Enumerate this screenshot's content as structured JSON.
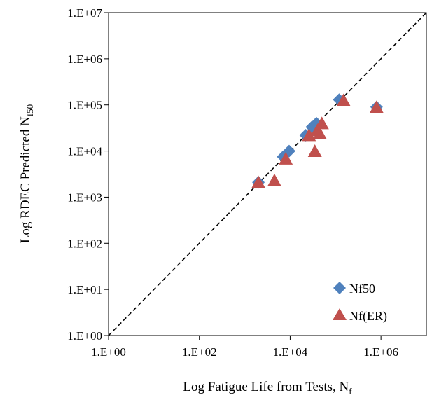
{
  "chart_data": {
    "type": "scatter",
    "xlabel": "Log Fatigue Life from Tests, N",
    "xlabel_sub": "f",
    "ylabel": "Log RDEC Predicted N",
    "ylabel_sub": "f50",
    "x_scale": "log",
    "y_scale": "log",
    "xlim": [
      1,
      10000000
    ],
    "ylim": [
      1,
      10000000
    ],
    "x_ticks": [
      1,
      100,
      10000,
      1000000
    ],
    "x_tick_labels": [
      "1.E+00",
      "1.E+02",
      "1.E+04",
      "1.E+06"
    ],
    "y_ticks": [
      1,
      10,
      100,
      1000,
      10000,
      100000,
      1000000,
      10000000
    ],
    "y_tick_labels": [
      "1.E+00",
      "1.E+01",
      "1.E+02",
      "1.E+03",
      "1.E+04",
      "1.E+05",
      "1.E+06",
      "1.E+07"
    ],
    "grid": false,
    "legend_position": "bottom-right",
    "reference_line": {
      "style": "dashed",
      "color": "#000000",
      "from": [
        1,
        1
      ],
      "to": [
        10000000,
        10000000
      ]
    },
    "series": [
      {
        "name": "Nf50",
        "marker": "diamond",
        "color": "#4F81BD",
        "points": [
          [
            2000,
            2100
          ],
          [
            7000,
            7500
          ],
          [
            9500,
            10000
          ],
          [
            22000,
            22000
          ],
          [
            30000,
            33000
          ],
          [
            38000,
            40000
          ],
          [
            120000,
            130000
          ],
          [
            800000,
            90000
          ]
        ]
      },
      {
        "name": "Nf(ER)",
        "marker": "triangle",
        "color": "#C0504D",
        "points": [
          [
            2000,
            2000
          ],
          [
            4500,
            2200
          ],
          [
            8000,
            6500
          ],
          [
            26000,
            21000
          ],
          [
            35000,
            9500
          ],
          [
            40000,
            27000
          ],
          [
            45000,
            23000
          ],
          [
            50000,
            38000
          ],
          [
            150000,
            120000
          ],
          [
            800000,
            85000
          ]
        ]
      }
    ]
  }
}
